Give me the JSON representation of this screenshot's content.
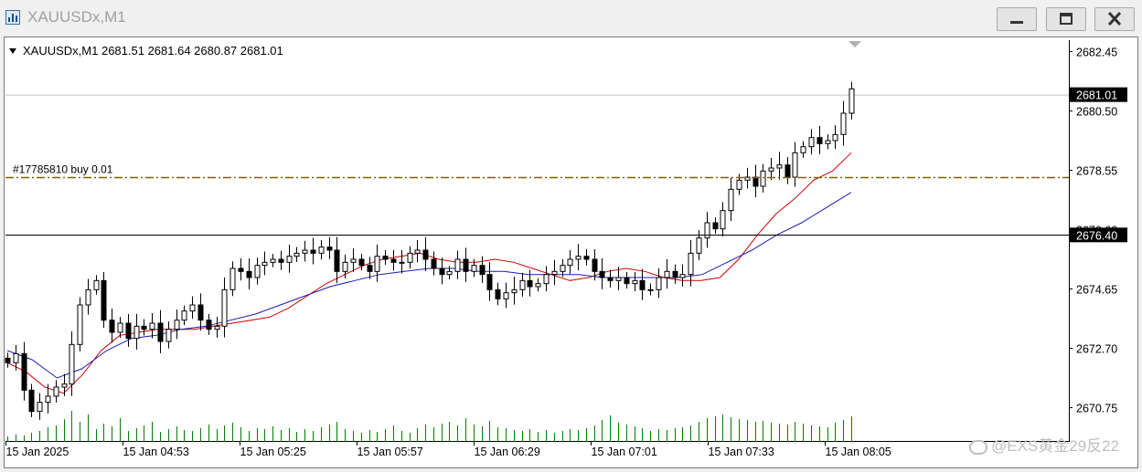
{
  "window": {
    "title": "XAUUSDx,M1",
    "buttons": [
      "minimize",
      "maximize",
      "close"
    ]
  },
  "chart_data": {
    "type": "candlestick",
    "symbol_info": "XAUUSDx,M1  2681.51 2681.64 2680.87 2681.01",
    "symbol": "XAUUSDx,M1",
    "ohlc": {
      "open": 2681.51,
      "high": 2681.64,
      "low": 2680.87,
      "close": 2681.01
    },
    "y_ticks": [
      "2682.45",
      "2680.50",
      "2678.55",
      "2676.60",
      "2674.65",
      "2672.70",
      "2670.75"
    ],
    "ylim": [
      2669.6,
      2682.8
    ],
    "x_ticks": [
      "15 Jan 2025",
      "15 Jan 04:53",
      "15 Jan 05:25",
      "15 Jan 05:57",
      "15 Jan 06:29",
      "15 Jan 07:01",
      "15 Jan 07:33",
      "15 Jan 08:05"
    ],
    "price_label": "2681.01",
    "order": {
      "label": "#17785810 buy 0.01",
      "price": 2678.3
    },
    "hline": {
      "price": 2676.4,
      "label": "2676.40"
    },
    "bid_line": 2681.01,
    "series": [
      {
        "name": "",
        "type": "candles",
        "color": "#000000",
        "values": [
          2672.2,
          2672.5,
          2671.3,
          2670.6,
          2670.9,
          2671.1,
          2671.4,
          2671.5,
          2672.8,
          2674.1,
          2674.6,
          2674.9,
          2673.6,
          2673.2,
          2673.5,
          2673.0,
          2673.4,
          2673.3,
          2673.5,
          2672.9,
          2673.3,
          2673.6,
          2673.9,
          2674.1,
          2673.6,
          2673.3,
          2673.4,
          2674.6,
          2675.3,
          2675.2,
          2675.0,
          2675.4,
          2675.5,
          2675.6,
          2675.5,
          2675.7,
          2675.8,
          2675.9,
          2675.8,
          2676.0,
          2675.9,
          2675.2,
          2675.5,
          2675.6,
          2675.4,
          2675.2,
          2675.7,
          2675.6,
          2675.5,
          2675.5,
          2675.8,
          2675.9,
          2675.6,
          2675.3,
          2675.1,
          2675.2,
          2675.6,
          2675.2,
          2675.4,
          2675.1,
          2674.6,
          2674.3,
          2674.5,
          2674.6,
          2674.9,
          2674.7,
          2674.8,
          2675.1,
          2675.2,
          2675.4,
          2675.6,
          2675.7,
          2675.6,
          2675.2,
          2675.0,
          2674.9,
          2675.0,
          2674.8,
          2674.9,
          2674.6,
          2674.6,
          2675.0,
          2675.2,
          2675.0,
          2675.1,
          2675.8,
          2676.3,
          2676.8,
          2676.6,
          2677.2,
          2677.9,
          2678.2,
          2678.3,
          2678.0,
          2678.5,
          2678.6,
          2678.7,
          2678.3,
          2679.1,
          2679.3,
          2679.6,
          2679.4,
          2679.5,
          2679.7,
          2680.4,
          2681.2
        ]
      },
      {
        "name": "",
        "type": "line",
        "color": "#cc0000",
        "values": [
          2672.2,
          2671.9,
          2671.4,
          2671.2,
          2671.8,
          2672.6,
          2673.1,
          2673.2,
          2673.3,
          2673.3,
          2673.3,
          2673.4,
          2673.5,
          2673.6,
          2673.7,
          2674.0,
          2674.4,
          2674.8,
          2675.1,
          2675.4,
          2675.6,
          2675.7,
          2675.8,
          2675.6,
          2675.5,
          2675.5,
          2675.6,
          2675.5,
          2675.3,
          2675.1,
          2674.9,
          2675.0,
          2675.2,
          2675.3,
          2675.2,
          2675.0,
          2674.9,
          2674.9,
          2675.0,
          2675.6,
          2676.4,
          2677.1,
          2677.6,
          2678.2,
          2678.5,
          2679.1
        ]
      },
      {
        "name": "",
        "type": "line",
        "color": "#1c1cb4",
        "values": [
          2672.6,
          2672.3,
          2671.7,
          2672.0,
          2672.6,
          2673.0,
          2673.1,
          2673.3,
          2673.4,
          2673.6,
          2673.8,
          2674.1,
          2674.4,
          2674.7,
          2674.9,
          2675.1,
          2675.2,
          2675.3,
          2675.3,
          2675.2,
          2675.2,
          2675.1,
          2675.1,
          2675.1,
          2675.0,
          2675.0,
          2675.0,
          2675.0,
          2675.1,
          2675.5,
          2675.9,
          2676.4,
          2676.8,
          2677.3,
          2677.8
        ]
      },
      {
        "name": "",
        "type": "volume",
        "color": "#008000",
        "values": [
          6,
          8,
          7,
          10,
          12,
          16,
          18,
          25,
          34,
          22,
          30,
          14,
          20,
          17,
          26,
          12,
          15,
          18,
          22,
          11,
          14,
          17,
          13,
          12,
          15,
          19,
          14,
          18,
          21,
          16,
          12,
          15,
          14,
          17,
          13,
          15,
          11,
          14,
          12,
          16,
          19,
          22,
          14,
          12,
          10,
          13,
          11,
          14,
          18,
          12,
          10,
          15,
          19,
          16,
          20,
          22,
          18,
          26,
          19,
          17,
          23,
          16,
          15,
          13,
          12,
          14,
          11,
          13,
          10,
          12,
          14,
          13,
          15,
          18,
          24,
          29,
          21,
          19,
          17,
          15,
          12,
          14,
          13,
          15,
          16,
          18,
          22,
          26,
          28,
          30,
          27,
          25,
          24,
          22,
          23,
          21,
          20,
          19,
          22,
          20,
          18,
          17,
          16,
          21,
          24,
          28
        ]
      }
    ]
  },
  "watermark": "@EXS黄金29反22"
}
